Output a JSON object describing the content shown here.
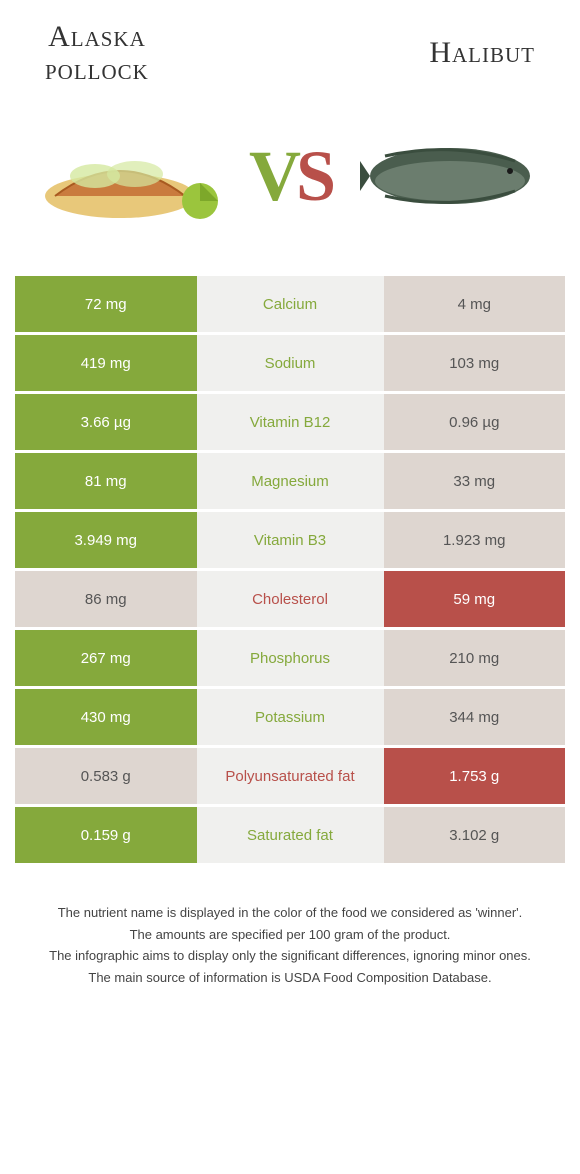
{
  "header": {
    "leftTitle": "Alaska pollock",
    "rightTitle": "Halibut"
  },
  "vs": {
    "v": "V",
    "s": "S"
  },
  "colors": {
    "green": "#85a93c",
    "red": "#b8504a",
    "neutral": "#ded6d0",
    "centerBg": "#f0f0ee"
  },
  "rows": [
    {
      "left": "72 mg",
      "label": "Calcium",
      "right": "4 mg",
      "winner": "left"
    },
    {
      "left": "419 mg",
      "label": "Sodium",
      "right": "103 mg",
      "winner": "left"
    },
    {
      "left": "3.66 µg",
      "label": "Vitamin B12",
      "right": "0.96 µg",
      "winner": "left"
    },
    {
      "left": "81 mg",
      "label": "Magnesium",
      "right": "33 mg",
      "winner": "left"
    },
    {
      "left": "3.949 mg",
      "label": "Vitamin B3",
      "right": "1.923 mg",
      "winner": "left"
    },
    {
      "left": "86 mg",
      "label": "Cholesterol",
      "right": "59 mg",
      "winner": "right"
    },
    {
      "left": "267 mg",
      "label": "Phosphorus",
      "right": "210 mg",
      "winner": "left"
    },
    {
      "left": "430 mg",
      "label": "Potassium",
      "right": "344 mg",
      "winner": "left"
    },
    {
      "left": "0.583 g",
      "label": "Polyunsaturated fat",
      "right": "1.753 g",
      "winner": "right"
    },
    {
      "left": "0.159 g",
      "label": "Saturated fat",
      "right": "3.102 g",
      "winner": "left"
    }
  ],
  "footer": {
    "line1": "The nutrient name is displayed in the color of the food we considered as 'winner'.",
    "line2": "The amounts are specified per 100 gram of the product.",
    "line3": "The infographic aims to display only the significant differences, ignoring minor ones.",
    "line4": "The main source of information is USDA Food Composition Database."
  }
}
